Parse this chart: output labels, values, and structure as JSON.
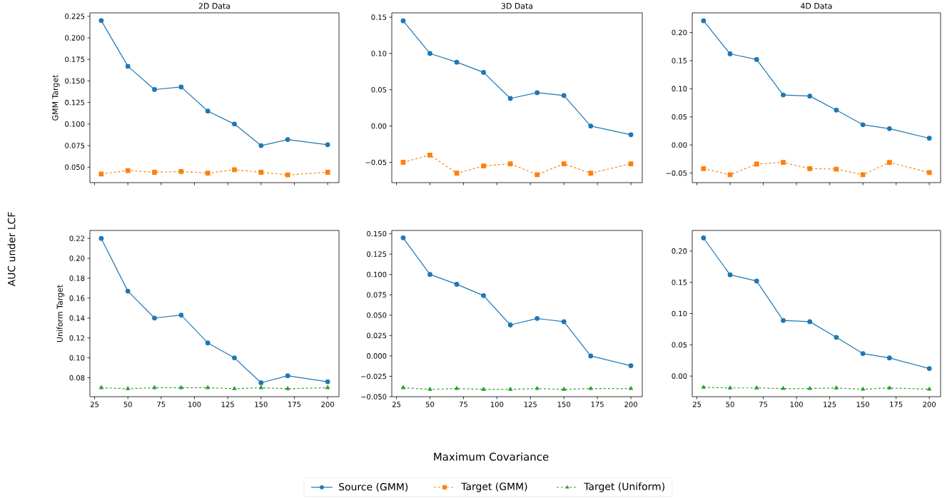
{
  "chart_data": [
    {
      "type": "line",
      "title": "2D Data",
      "ylabel": "GMM Target",
      "annotations": [
        "AUC under LCF",
        "Maximum Covariance"
      ],
      "legend": "bottom",
      "tick_labels": "y",
      "x": [
        30,
        50,
        70,
        90,
        110,
        130,
        150,
        170,
        200
      ],
      "xlim": [
        21.5,
        208.5
      ],
      "xticks": [
        25,
        50,
        75,
        100,
        125,
        150,
        175,
        200
      ],
      "ylim": [
        0.032,
        0.229
      ],
      "yticks": [
        {
          "value": 0.05,
          "label": "0.050"
        },
        {
          "value": 0.075,
          "label": "0.075"
        },
        {
          "value": 0.1,
          "label": "0.100"
        },
        {
          "value": 0.125,
          "label": "0.125"
        },
        {
          "value": 0.15,
          "label": "0.150"
        },
        {
          "value": 0.175,
          "label": "0.175"
        },
        {
          "value": 0.2,
          "label": "0.200"
        },
        {
          "value": 0.225,
          "label": "0.225"
        }
      ],
      "series": [
        {
          "name": "Source (GMM)",
          "color": "#1f77b4",
          "marker": "circle",
          "line_style": "solid",
          "values": [
            0.22,
            0.167,
            0.14,
            0.143,
            0.115,
            0.1,
            0.075,
            0.082,
            0.076
          ]
        },
        {
          "name": "Target (GMM)",
          "color": "#ff7f0e",
          "marker": "square",
          "line_style": "dashed",
          "values": [
            0.042,
            0.046,
            0.044,
            0.045,
            0.043,
            0.047,
            0.044,
            0.041,
            0.044
          ]
        }
      ]
    },
    {
      "type": "line",
      "title": "3D Data",
      "tick_labels": "y",
      "x": [
        30,
        50,
        70,
        90,
        110,
        130,
        150,
        170,
        200
      ],
      "xlim": [
        21.5,
        208.5
      ],
      "xticks": [
        25,
        50,
        75,
        100,
        125,
        150,
        175,
        200
      ],
      "ylim": [
        -0.078,
        0.156
      ],
      "yticks": [
        {
          "value": -0.05,
          "label": "−0.05"
        },
        {
          "value": 0,
          "label": "0.00"
        },
        {
          "value": 0.05,
          "label": "0.05"
        },
        {
          "value": 0.1,
          "label": "0.10"
        },
        {
          "value": 0.15,
          "label": "0.15"
        }
      ],
      "series": [
        {
          "color": "#1f77b4",
          "marker": "circle",
          "line_style": "solid",
          "values": [
            0.145,
            0.1,
            0.088,
            0.074,
            0.038,
            0.046,
            0.042,
            0.0,
            -0.012
          ]
        },
        {
          "color": "#ff7f0e",
          "marker": "square",
          "line_style": "dashed",
          "values": [
            -0.05,
            -0.04,
            -0.065,
            -0.055,
            -0.052,
            -0.067,
            -0.052,
            -0.065,
            -0.052
          ]
        }
      ]
    },
    {
      "type": "line",
      "title": "4D Data",
      "tick_labels": "y",
      "x": [
        30,
        50,
        70,
        90,
        110,
        130,
        150,
        170,
        200
      ],
      "xlim": [
        21.5,
        208.5
      ],
      "xticks": [
        25,
        50,
        75,
        100,
        125,
        150,
        175,
        200
      ],
      "ylim": [
        -0.067,
        0.235
      ],
      "yticks": [
        {
          "value": -0.05,
          "label": "−0.05"
        },
        {
          "value": 0,
          "label": "0.00"
        },
        {
          "value": 0.05,
          "label": "0.05"
        },
        {
          "value": 0.1,
          "label": "0.10"
        },
        {
          "value": 0.15,
          "label": "0.15"
        },
        {
          "value": 0.2,
          "label": "0.20"
        }
      ],
      "series": [
        {
          "color": "#1f77b4",
          "marker": "circle",
          "line_style": "solid",
          "values": [
            0.221,
            0.162,
            0.152,
            0.089,
            0.087,
            0.062,
            0.036,
            0.029,
            0.012
          ]
        },
        {
          "color": "#ff7f0e",
          "marker": "square",
          "line_style": "dashed",
          "values": [
            -0.042,
            -0.053,
            -0.034,
            -0.031,
            -0.042,
            -0.043,
            -0.053,
            -0.031,
            -0.049
          ]
        }
      ]
    },
    {
      "type": "line",
      "ylabel": "Uniform Target",
      "legend": "bottom",
      "x": [
        30,
        50,
        70,
        90,
        110,
        130,
        150,
        170,
        200
      ],
      "xlim": [
        21.5,
        208.5
      ],
      "xticks": [
        25,
        50,
        75,
        100,
        125,
        150,
        175,
        200
      ],
      "ylim": [
        0.061,
        0.228
      ],
      "yticks": [
        {
          "value": 0.08,
          "label": "0.08"
        },
        {
          "value": 0.1,
          "label": "0.10"
        },
        {
          "value": 0.12,
          "label": "0.12"
        },
        {
          "value": 0.14,
          "label": "0.14"
        },
        {
          "value": 0.16,
          "label": "0.16"
        },
        {
          "value": 0.18,
          "label": "0.18"
        },
        {
          "value": 0.2,
          "label": "0.20"
        },
        {
          "value": 0.22,
          "label": "0.22"
        }
      ],
      "series": [
        {
          "name": "Source (GMM)",
          "color": "#1f77b4",
          "marker": "circle",
          "line_style": "solid",
          "values": [
            0.22,
            0.167,
            0.14,
            0.143,
            0.115,
            0.1,
            0.075,
            0.082,
            0.076
          ]
        },
        {
          "name": "Target (Uniform)",
          "color": "#2ca02c",
          "marker": "triangle",
          "line_style": "dashed",
          "values": [
            0.07,
            0.069,
            0.07,
            0.07,
            0.07,
            0.069,
            0.07,
            0.069,
            0.07
          ]
        }
      ]
    },
    {
      "type": "line",
      "x": [
        30,
        50,
        70,
        90,
        110,
        130,
        150,
        170,
        200
      ],
      "xlim": [
        21.5,
        208.5
      ],
      "xticks": [
        25,
        50,
        75,
        100,
        125,
        150,
        175,
        200
      ],
      "ylim": [
        -0.05,
        0.154
      ],
      "yticks": [
        {
          "value": -0.05,
          "label": "−0.050"
        },
        {
          "value": -0.025,
          "label": "−0.025"
        },
        {
          "value": 0,
          "label": "0.000"
        },
        {
          "value": 0.025,
          "label": "0.025"
        },
        {
          "value": 0.05,
          "label": "0.050"
        },
        {
          "value": 0.075,
          "label": "0.075"
        },
        {
          "value": 0.1,
          "label": "0.100"
        },
        {
          "value": 0.125,
          "label": "0.125"
        },
        {
          "value": 0.15,
          "label": "0.150"
        }
      ],
      "series": [
        {
          "color": "#1f77b4",
          "marker": "circle",
          "line_style": "solid",
          "values": [
            0.145,
            0.1,
            0.088,
            0.074,
            0.038,
            0.046,
            0.042,
            0.0,
            -0.012
          ]
        },
        {
          "color": "#2ca02c",
          "marker": "triangle",
          "line_style": "dashed",
          "values": [
            -0.039,
            -0.041,
            -0.04,
            -0.041,
            -0.041,
            -0.04,
            -0.041,
            -0.04,
            -0.04
          ]
        }
      ]
    },
    {
      "type": "line",
      "x": [
        30,
        50,
        70,
        90,
        110,
        130,
        150,
        170,
        200
      ],
      "xlim": [
        21.5,
        208.5
      ],
      "xticks": [
        25,
        50,
        75,
        100,
        125,
        150,
        175,
        200
      ],
      "ylim": [
        -0.033,
        0.233
      ],
      "yticks": [
        {
          "value": 0,
          "label": "0.00"
        },
        {
          "value": 0.05,
          "label": "0.05"
        },
        {
          "value": 0.1,
          "label": "0.10"
        },
        {
          "value": 0.15,
          "label": "0.15"
        },
        {
          "value": 0.2,
          "label": "0.20"
        }
      ],
      "series": [
        {
          "color": "#1f77b4",
          "marker": "circle",
          "line_style": "solid",
          "values": [
            0.221,
            0.162,
            0.152,
            0.089,
            0.087,
            0.062,
            0.036,
            0.029,
            0.012
          ]
        },
        {
          "color": "#2ca02c",
          "marker": "triangle",
          "line_style": "dashed",
          "values": [
            -0.018,
            -0.019,
            -0.019,
            -0.02,
            -0.02,
            -0.019,
            -0.021,
            -0.019,
            -0.021
          ]
        }
      ]
    }
  ]
}
